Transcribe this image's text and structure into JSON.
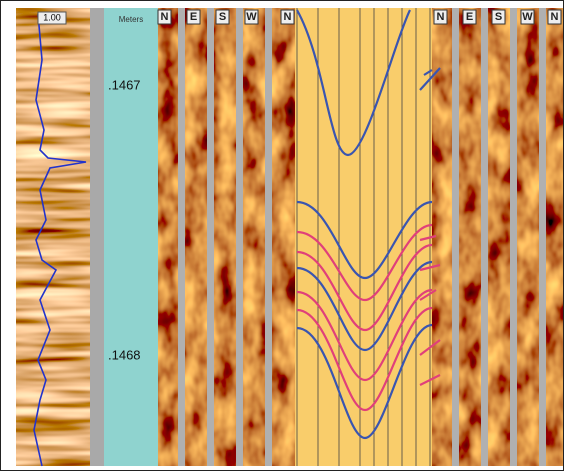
{
  "log_track": {
    "scale_label": "1.00"
  },
  "depth_track": {
    "header": "Meters",
    "labels": [
      ".1467",
      ".1468"
    ]
  },
  "left_image": {
    "headers": [
      "N",
      "E",
      "S",
      "W",
      "N"
    ]
  },
  "right_image": {
    "headers": [
      "N",
      "E",
      "S",
      "W",
      "N"
    ]
  }
}
